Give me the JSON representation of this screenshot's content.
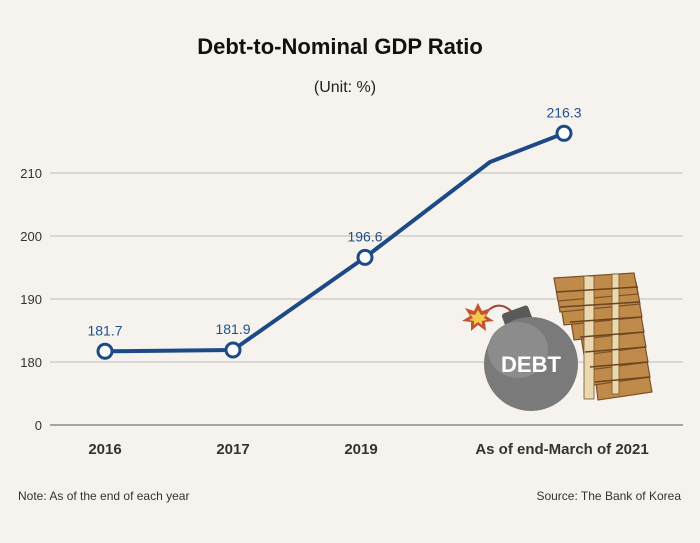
{
  "chart_data": {
    "type": "line",
    "title": "Debt-to-Nominal GDP Ratio",
    "subtitle": "(Unit: %)",
    "categories": [
      "2016",
      "2017",
      "2019",
      "As of end-March of 2021"
    ],
    "values": [
      181.7,
      181.9,
      196.6,
      216.3
    ],
    "data_labels": [
      "181.7",
      "181.9",
      "196.6",
      "216.3"
    ],
    "yticks": [
      0,
      180,
      190,
      200,
      210
    ],
    "ylim": [
      0,
      216.3
    ],
    "axis_break": "0 to 180",
    "grid": true,
    "line_color": "#1c4a86"
  },
  "illustration": {
    "bomb_label": "DEBT",
    "icon_names": [
      "bomb-icon",
      "money-stack-icon",
      "spark-icon"
    ]
  },
  "footer": {
    "note": "Note: As of the end of each year",
    "source": "Source: The Bank of Korea"
  }
}
